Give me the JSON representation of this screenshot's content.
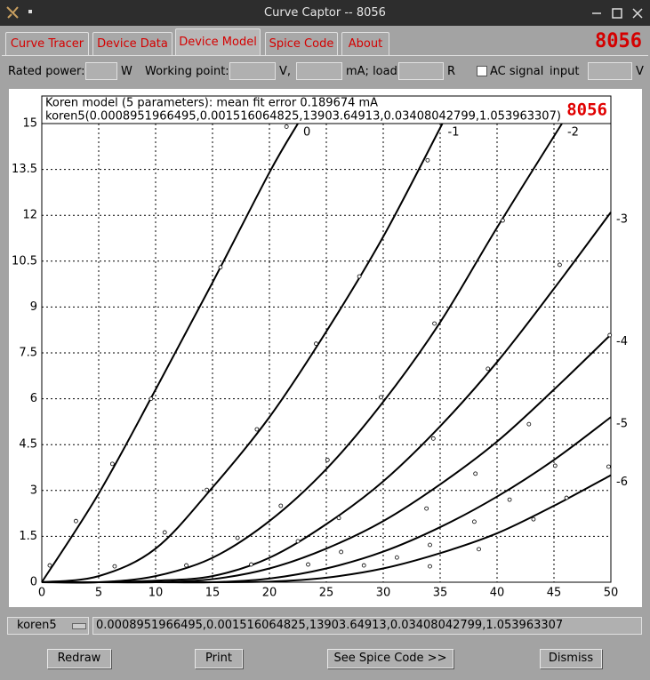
{
  "window": {
    "title": "Curve Captor -- 8056"
  },
  "tabs": [
    "Curve Tracer",
    "Device Data",
    "Device Model",
    "Spice Code",
    "About"
  ],
  "device": "8056",
  "form": {
    "rated_power": "Rated power:",
    "rated_power_unit": "W",
    "working_point": "Working point:",
    "v_unit": "V,",
    "ma_load": "mA; load",
    "r_unit": "R",
    "ac_signal": "AC signal",
    "input": "input",
    "input_unit": "V"
  },
  "chart_data": {
    "type": "line",
    "title": "Koren model (5 parameters): mean fit error 0.189674 mA",
    "subtitle": "koren5(0.0008951966495,0.001516064825,13903.64913,0.03408042799,1.053963307)",
    "device_label": "8056",
    "xlim": [
      0,
      50
    ],
    "ylim": [
      0,
      15
    ],
    "xticks": [
      0,
      5,
      10,
      15,
      20,
      25,
      30,
      35,
      40,
      45,
      50
    ],
    "yticks": [
      0,
      1.5,
      3,
      4.5,
      6,
      7.5,
      9,
      10.5,
      12,
      13.5,
      15
    ],
    "grid": true,
    "series": [
      {
        "name": "0",
        "color": "#000000",
        "x": [
          0,
          5,
          10,
          15,
          20,
          22.5
        ],
        "values": [
          0,
          2.9,
          6.3,
          9.8,
          13.4,
          15
        ]
      },
      {
        "name": "-1",
        "color": "#000000",
        "x": [
          0,
          5,
          10,
          15,
          20,
          25,
          30,
          35.2
        ],
        "values": [
          0,
          0.2,
          1.1,
          3.1,
          5.4,
          8.2,
          11.3,
          15
        ]
      },
      {
        "name": "-2",
        "color": "#000000",
        "x": [
          0,
          5,
          10,
          15,
          20,
          25,
          30,
          35,
          40,
          45.7
        ],
        "values": [
          0,
          0,
          0.2,
          0.8,
          2.0,
          3.7,
          5.9,
          8.5,
          11.6,
          15
        ]
      },
      {
        "name": "-3",
        "color": "#000000",
        "x": [
          0,
          5,
          10,
          15,
          20,
          25,
          30,
          35,
          40,
          45,
          50
        ],
        "values": [
          0,
          0,
          0.05,
          0.2,
          0.8,
          1.9,
          3.3,
          5.1,
          7.2,
          9.6,
          12.1
        ]
      },
      {
        "name": "-4",
        "color": "#000000",
        "x": [
          0,
          5,
          10,
          15,
          20,
          25,
          30,
          35,
          40,
          45,
          50
        ],
        "values": [
          0,
          0,
          0,
          0.1,
          0.45,
          1.1,
          2.0,
          3.2,
          4.6,
          6.3,
          8.1
        ]
      },
      {
        "name": "-5",
        "color": "#000000",
        "x": [
          0,
          5,
          10,
          15,
          20,
          25,
          30,
          35,
          40,
          45,
          50
        ],
        "values": [
          0,
          0,
          0,
          0,
          0.12,
          0.45,
          1.0,
          1.8,
          2.8,
          4.0,
          5.4
        ]
      },
      {
        "name": "-6",
        "color": "#000000",
        "x": [
          0,
          5,
          10,
          15,
          20,
          25,
          30,
          35,
          40,
          45,
          50
        ],
        "values": [
          0,
          0,
          0,
          0,
          0.02,
          0.15,
          0.45,
          0.95,
          1.6,
          2.5,
          3.5
        ]
      }
    ],
    "points": {
      "x": [
        0.7,
        3.0,
        6.2,
        9.6,
        15.7,
        21.5,
        6.4,
        10.8,
        14.5,
        18.9,
        24.1,
        27.9,
        33.9,
        12.7,
        17.2,
        21.0,
        25.1,
        29.8,
        34.5,
        40.5,
        45.5,
        18.4,
        22.5,
        26.1,
        34.4,
        39.2,
        42.8,
        49.9,
        23.4,
        26.3,
        33.8,
        38.1,
        45.1,
        28.3,
        31.2,
        34.1,
        38.0,
        41.1,
        34.1,
        38.4,
        43.2,
        46.1,
        49.8
      ],
      "values": [
        0.55,
        2.0,
        3.87,
        6.0,
        10.3,
        14.9,
        0.52,
        1.63,
        3.02,
        5.0,
        7.8,
        10.0,
        13.8,
        0.55,
        1.45,
        2.5,
        4.0,
        6.05,
        8.46,
        11.83,
        10.38,
        0.58,
        1.34,
        2.1,
        4.7,
        6.98,
        5.17,
        8.08,
        0.58,
        0.99,
        2.41,
        3.55,
        3.81,
        0.55,
        0.81,
        1.22,
        1.98,
        2.7,
        0.52,
        1.08,
        2.06,
        2.76,
        3.78
      ]
    }
  },
  "model": {
    "selector": "koren5",
    "parameters": "0.0008951966495,0.001516064825,13903.64913,0.03408042799,1.053963307"
  },
  "buttons": [
    "Redraw",
    "Print",
    "See Spice Code >>",
    "Dismiss"
  ]
}
